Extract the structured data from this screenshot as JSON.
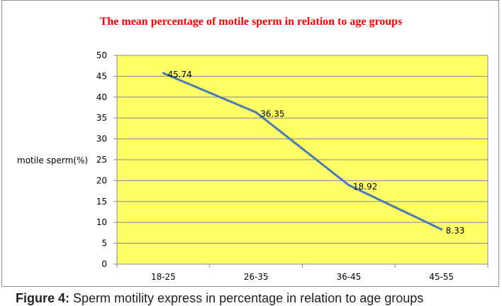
{
  "figure": {
    "caption_lead": "Figure 4:",
    "caption_text": " Sperm motility express in percentage in relation to age groups"
  },
  "chart_data": {
    "type": "line",
    "title": "The mean percentage of motile sperm in relation to age groups",
    "xlabel": "",
    "ylabel": "motile sperm(%)",
    "categories": [
      "18-25",
      "26-35",
      "36-45",
      "45-55"
    ],
    "series": [
      {
        "values": [
          45.74,
          36.35,
          18.92,
          8.33
        ],
        "data_labels": [
          "45.74",
          "36.35",
          "18.92",
          "8.33"
        ]
      }
    ],
    "ylim": [
      0,
      50
    ],
    "yticks": [
      0,
      5,
      10,
      15,
      20,
      25,
      30,
      35,
      40,
      45,
      50
    ],
    "grid": true,
    "legend": "none",
    "colors": {
      "plot_background": "#ffff66",
      "line": "#4a7ab6",
      "title": "#ff0000",
      "grid": "#8a8a8a"
    }
  }
}
